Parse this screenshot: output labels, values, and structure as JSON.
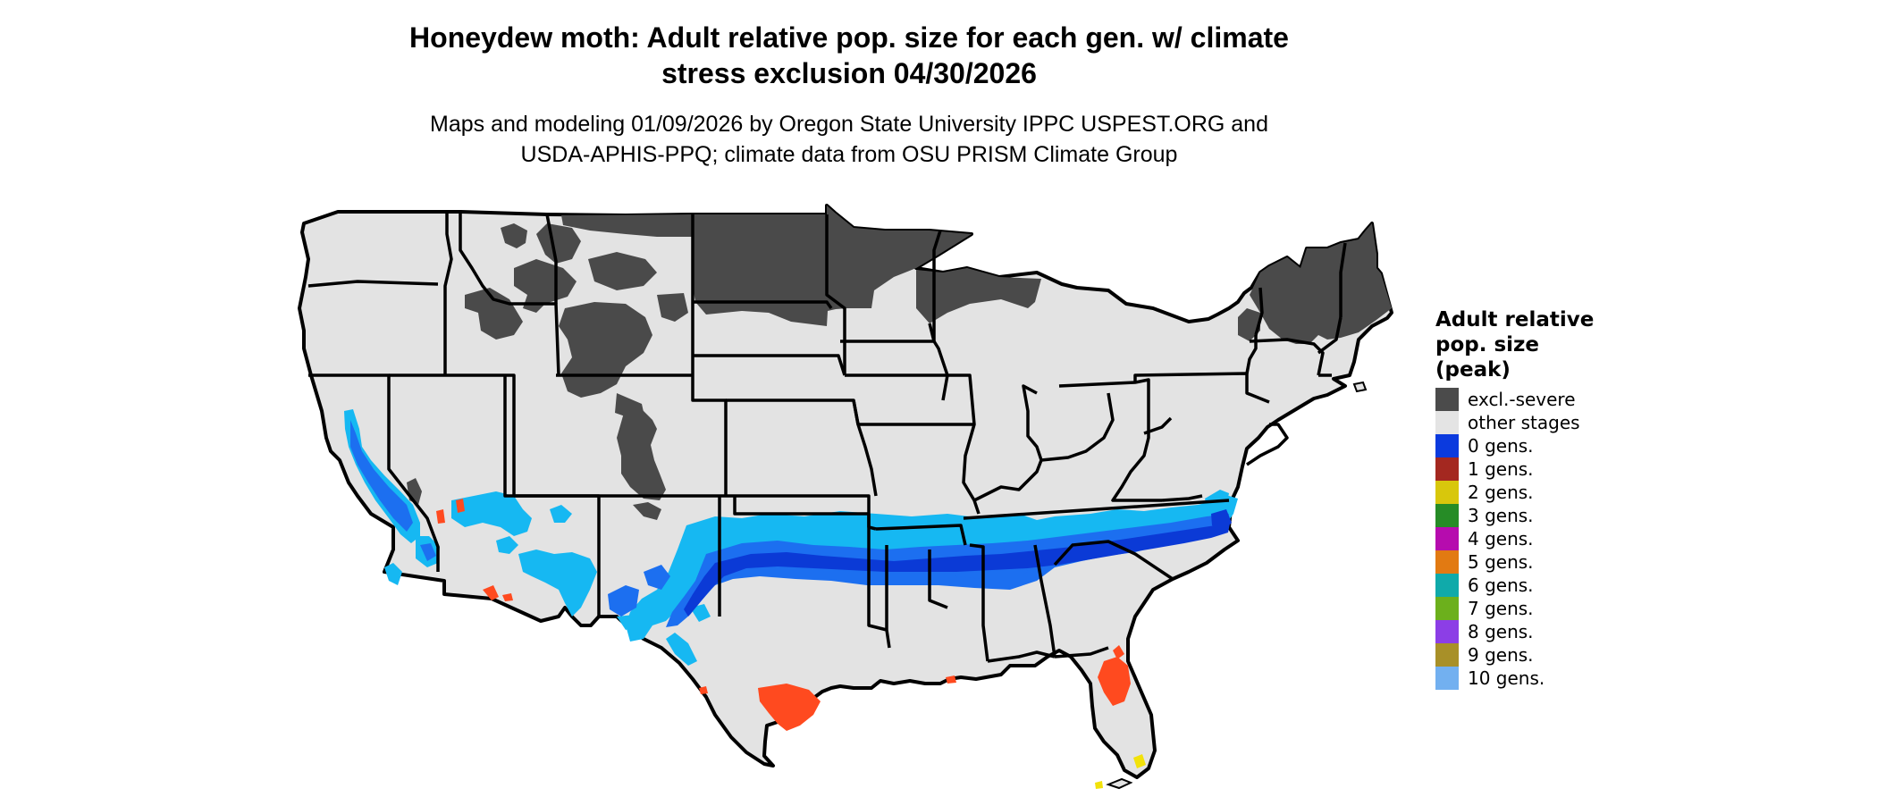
{
  "title": {
    "line1": "Honeydew moth: Adult relative pop. size for each gen. w/ climate",
    "line2": "stress exclusion 04/30/2026"
  },
  "subtitle": {
    "line1": "Maps and modeling 01/09/2026 by Oregon State University IPPC USPEST.ORG and",
    "line2": "USDA-APHIS-PPQ; climate data from OSU PRISM Climate Group"
  },
  "map": {
    "region": "Contiguous United States",
    "colors": {
      "land": "#e3e3e3",
      "border": "#000000",
      "excluded": "#4a4a4a",
      "light_blue": "#16b8f2",
      "mid_blue": "#1c6ff0",
      "dark_blue": "#0b3ad6",
      "red": "#ff4a1f",
      "yellow": "#f2e20a"
    }
  },
  "legend": {
    "title_lines": [
      "Adult relative",
      "pop. size",
      "(peak)"
    ],
    "items": [
      {
        "label": "excl.-severe",
        "color": "#4b4b4b"
      },
      {
        "label": "other stages",
        "color": "#e4e4e4"
      },
      {
        "label": "0 gens.",
        "color": "#0b3ade"
      },
      {
        "label": "1 gens.",
        "color": "#a42820"
      },
      {
        "label": "2 gens.",
        "color": "#d8c70c"
      },
      {
        "label": "3 gens.",
        "color": "#268c26"
      },
      {
        "label": "4 gens.",
        "color": "#b60cae"
      },
      {
        "label": "5 gens.",
        "color": "#e27a12"
      },
      {
        "label": "6 gens.",
        "color": "#10aaaa"
      },
      {
        "label": "7 gens.",
        "color": "#6cb01c"
      },
      {
        "label": "8 gens.",
        "color": "#8c3ee6"
      },
      {
        "label": "9 gens.",
        "color": "#a89028"
      },
      {
        "label": "10 gens.",
        "color": "#72b0f0"
      }
    ]
  }
}
